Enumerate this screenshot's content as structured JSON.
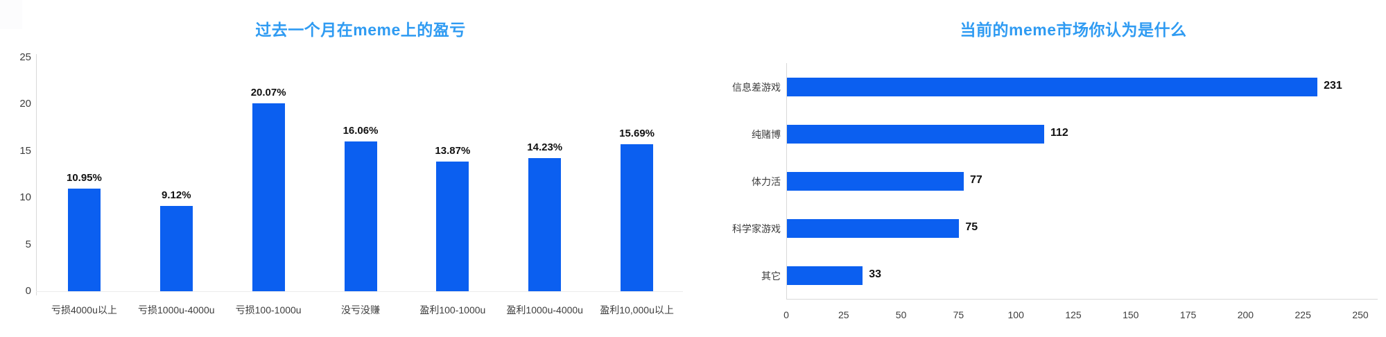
{
  "page": {
    "background": "#ffffff"
  },
  "colors": {
    "bar_blue": "#0b5ff0",
    "title_blue": "#2f9bf2",
    "value_label": "#111111",
    "tick_label": "#3d3d3d",
    "axis_line": "#d9d9d9"
  },
  "chart_data": [
    {
      "type": "bar",
      "title": "过去一个月在meme上的盈亏",
      "title_color": "#2f9bf2",
      "bar_color": "#0b5ff0",
      "categories": [
        "亏损4000u以上",
        "亏损1000u-4000u",
        "亏损100-1000u",
        "没亏没赚",
        "盈利100-1000u",
        "盈利1000u-4000u",
        "盈利10,000u以上"
      ],
      "values": [
        10.95,
        9.12,
        20.07,
        16.06,
        13.87,
        14.23,
        15.69
      ],
      "value_labels": [
        "10.95%",
        "9.12%",
        "20.07%",
        "16.06%",
        "13.87%",
        "14.23%",
        "15.69%"
      ],
      "xlabel": "",
      "ylabel": "",
      "ylim": [
        0,
        25
      ],
      "yticks": [
        0,
        5,
        10,
        15,
        20,
        25
      ],
      "grid": false,
      "legend": false
    },
    {
      "type": "bar",
      "orientation": "horizontal",
      "title": "当前的meme市场你认为是什么",
      "title_color": "#2f9bf2",
      "bar_color": "#0b5ff0",
      "categories": [
        "信息差游戏",
        "纯赌博",
        "体力活",
        "科学家游戏",
        "其它"
      ],
      "values": [
        231,
        112,
        77,
        75,
        33
      ],
      "value_labels": [
        "231",
        "112",
        "77",
        "75",
        "33"
      ],
      "xlabel": "",
      "ylabel": "",
      "xlim": [
        0,
        250
      ],
      "xticks": [
        0,
        25,
        50,
        75,
        100,
        125,
        150,
        175,
        200,
        225,
        250
      ],
      "grid": false,
      "legend": false
    }
  ]
}
